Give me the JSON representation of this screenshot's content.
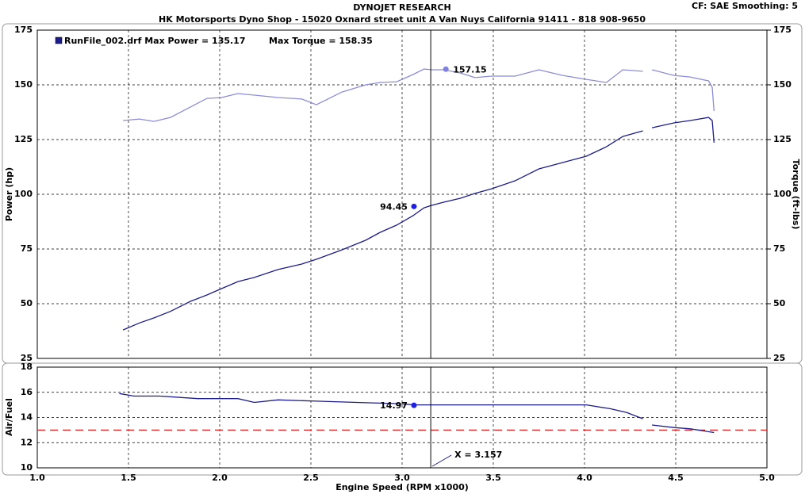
{
  "title": "DYNOJET RESEARCH",
  "subtitle": "HK Motorsports Dyno Shop - 15020 Oxnard street unit A Van Nuys California 91411 - 818 908-9650",
  "settings_text": "CF: SAE  Smoothing: 5",
  "chart_data": [
    {
      "type": "line",
      "ylabel": "Power (hp)",
      "y2label": "Torque (ft-lbs)",
      "legend_entries": [
        "RunFile_002.drf Max Power = 135.17",
        "Max Torque = 158.35"
      ],
      "xlim": [
        1.0,
        5.0
      ],
      "ylim": [
        25,
        175
      ],
      "yticks": [
        25,
        50,
        75,
        100,
        125,
        150,
        175
      ],
      "y2lim": [
        25,
        175
      ],
      "y2ticks": [
        25,
        50,
        75,
        100,
        125,
        150,
        175
      ],
      "grid": true,
      "x": [
        1.47,
        1.56,
        1.64,
        1.73,
        1.84,
        1.93,
        2.01,
        2.1,
        2.19,
        2.32,
        2.45,
        2.53,
        2.67,
        2.8,
        2.88,
        2.97,
        3.06,
        3.12,
        3.16,
        3.23,
        3.32,
        3.4,
        3.49,
        3.62,
        3.75,
        3.88,
        4.01,
        4.12,
        4.21,
        4.32,
        4.34,
        4.37,
        4.49,
        4.58,
        4.68,
        4.7,
        4.71
      ],
      "series": [
        {
          "color": "#1c1c8c",
          "values": [
            38.0,
            41.2,
            43.5,
            46.5,
            51.1,
            54.0,
            56.9,
            60.1,
            62.0,
            65.6,
            68.1,
            70.3,
            74.6,
            79.0,
            82.6,
            85.9,
            90.2,
            93.8,
            94.9,
            96.4,
            98.2,
            100.4,
            102.5,
            106.2,
            111.6,
            114.5,
            117.4,
            121.7,
            126.4,
            129.0,
            null,
            130.4,
            132.6,
            133.7,
            135.1,
            133.7,
            123.6
          ]
        },
        {
          "color": "#8c8cd8",
          "axis": "y2",
          "values": [
            133.7,
            134.4,
            133.3,
            135.1,
            139.9,
            143.8,
            144.2,
            146.0,
            145.3,
            144.2,
            143.5,
            140.9,
            146.7,
            150.0,
            151.1,
            151.4,
            154.7,
            157.2,
            156.9,
            156.9,
            155.4,
            153.3,
            154.0,
            154.0,
            156.9,
            154.3,
            152.5,
            151.1,
            156.9,
            156.2,
            null,
            156.9,
            154.3,
            153.6,
            151.8,
            148.9,
            138.0
          ]
        }
      ],
      "markers": [
        {
          "x": 3.065,
          "y": 94.45,
          "color": "#2020e0"
        },
        {
          "x": 3.24,
          "y": 157.15,
          "color": "#8080e0",
          "axis": "y2"
        }
      ],
      "cursor": {
        "x": 3.157
      }
    },
    {
      "type": "line",
      "ylabel": "Air/Fuel",
      "xlabel": "Engine Speed (RPM x1000)",
      "xlim": [
        1.0,
        5.0
      ],
      "xticks": [
        {
          "value": 1,
          "label": "1.0"
        },
        1.5,
        {
          "value": 2,
          "label": "2.0"
        },
        2.5,
        {
          "value": 3,
          "label": "3.0"
        },
        3.5,
        {
          "value": 4,
          "label": "4.0"
        },
        4.5,
        {
          "value": 5,
          "label": "5.0"
        }
      ],
      "ylim": [
        10,
        18
      ],
      "yticks": [
        10,
        12,
        14,
        16,
        18
      ],
      "grid": true,
      "x": [
        1.45,
        1.53,
        1.67,
        1.88,
        2.1,
        2.19,
        2.32,
        2.53,
        2.75,
        2.97,
        3.07,
        3.23,
        3.4,
        3.62,
        3.84,
        4.01,
        4.14,
        4.23,
        4.32,
        4.34,
        4.37,
        4.49,
        4.58,
        4.71
      ],
      "series": [
        {
          "color": "#1c1c8c",
          "values": [
            15.9,
            15.7,
            15.7,
            15.5,
            15.5,
            15.2,
            15.4,
            15.3,
            15.2,
            15.1,
            15.0,
            15.0,
            15.0,
            15.0,
            15.0,
            15.0,
            14.7,
            14.4,
            13.9,
            null,
            13.4,
            13.2,
            13.1,
            12.8
          ]
        }
      ],
      "reference": {
        "y": 13,
        "color": "#e02020"
      },
      "markers": [
        {
          "x": 3.065,
          "y": 14.97,
          "color": "#2020e0"
        }
      ],
      "cursor": {
        "x": 3.157,
        "label": "X = 3.157"
      }
    }
  ]
}
